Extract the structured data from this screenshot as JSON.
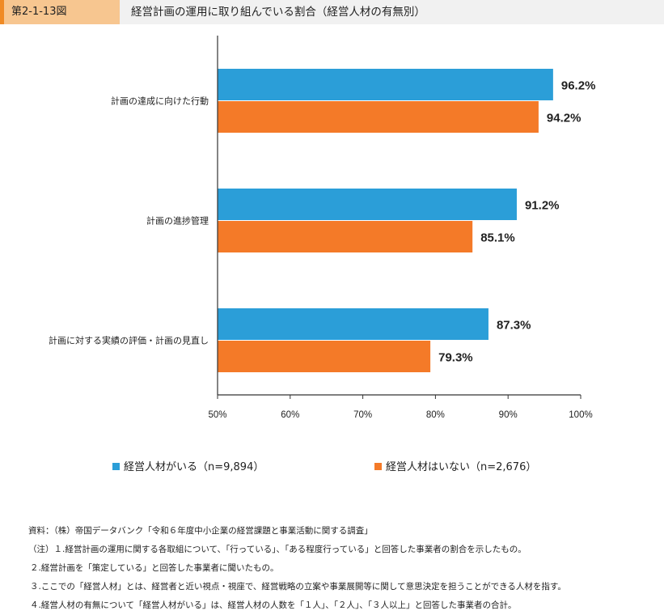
{
  "header": {
    "figure_number": "第2-1-13図",
    "title": "経営計画の運用に取り組んでいる割合（経営人材の有無別）",
    "colors": {
      "number_bg": "#f7c690",
      "accent": "#f08a24",
      "bar_bg": "#f1f1f1"
    }
  },
  "chart_data": {
    "type": "bar",
    "orientation": "horizontal",
    "title": "経営計画の運用に取り組んでいる割合（経営人材の有無別）",
    "categories": [
      "計画の達成に向けた行動",
      "計画の進捗管理",
      "計画に対する実績の評価・計画の見直し"
    ],
    "series": [
      {
        "name": "経営人材がいる（n=9,894）",
        "color": "#2b9ed8",
        "values": [
          96.2,
          91.2,
          87.3
        ],
        "labels": [
          "96.2%",
          "91.2%",
          "87.3%"
        ]
      },
      {
        "name": "経営人材はいない（n=2,676）",
        "color": "#f47a28",
        "values": [
          94.2,
          85.1,
          79.3
        ],
        "labels": [
          "94.2%",
          "85.1%",
          "79.3%"
        ]
      }
    ],
    "xlim": [
      50,
      100
    ],
    "x_ticks": [
      50,
      60,
      70,
      80,
      90,
      100
    ],
    "x_tick_labels": [
      "50%",
      "60%",
      "70%",
      "80%",
      "90%",
      "100%"
    ],
    "xlabel": "",
    "ylabel": "",
    "grid": false,
    "legend_position": "bottom"
  },
  "legend": {
    "items": [
      {
        "label": "経営人材がいる（n=9,894）",
        "color": "#2b9ed8"
      },
      {
        "label": "経営人材はいない（n=2,676）",
        "color": "#f47a28"
      }
    ]
  },
  "notes": [
    "資料：（株）帝国データバンク「令和６年度中小企業の経営課題と事業活動に関する調査」",
    "（注）１.経営計画の運用に関する各取組について、「行っている」、「ある程度行っている」と回答した事業者の割合を示したもの。",
    "２.経営計画を「策定している」と回答した事業者に聞いたもの。",
    "３.ここでの「経営人材」とは、経営者と近い視点・視座で、経営戦略の立案や事業展開等に関して意思決定を担うことができる人材を指す。",
    "４.経営人材の有無について「経営人材がいる」は、経営人材の人数を「１人」、「２人」、「３人以上」と回答した事業者の合計。"
  ]
}
